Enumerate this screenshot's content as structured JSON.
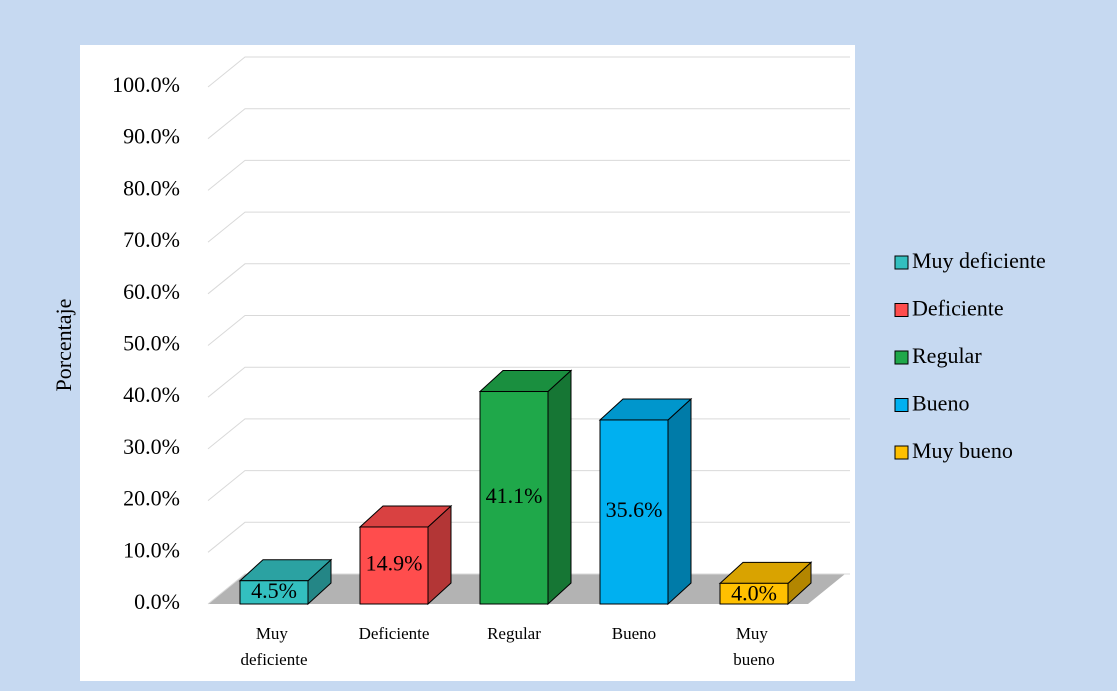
{
  "chart_data": {
    "type": "bar3d",
    "y_axis_label": "Porcentaje",
    "categories": [
      "Muy deficiente",
      "Deficiente",
      "Regular",
      "Bueno",
      "Muy bueno"
    ],
    "values": [
      4.5,
      14.9,
      41.1,
      35.6,
      4.0
    ],
    "value_labels": [
      "4.5%",
      "14.9%",
      "41.1%",
      "35.6%",
      "4.0%"
    ],
    "colors": [
      "#33bfbf",
      "#ff4d4d",
      "#1fa84a",
      "#00b0f0",
      "#ffc000"
    ],
    "ylim": [
      0,
      100
    ],
    "yticks": [
      {
        "value": 0,
        "label": "0.0%"
      },
      {
        "value": 10,
        "label": "10.0%"
      },
      {
        "value": 20,
        "label": "20.0%"
      },
      {
        "value": 30,
        "label": "30.0%"
      },
      {
        "value": 40,
        "label": "40.0%"
      },
      {
        "value": 50,
        "label": "50.0%"
      },
      {
        "value": 60,
        "label": "60.0%"
      },
      {
        "value": 70,
        "label": "70.0%"
      },
      {
        "value": 80,
        "label": "80.0%"
      },
      {
        "value": 90,
        "label": "90.0%"
      },
      {
        "value": 100,
        "label": "100.0%"
      }
    ],
    "grid": true,
    "legend": "right"
  }
}
